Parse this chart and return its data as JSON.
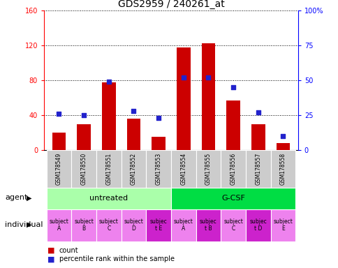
{
  "title": "GDS2959 / 240261_at",
  "samples": [
    "GSM178549",
    "GSM178550",
    "GSM178551",
    "GSM178552",
    "GSM178553",
    "GSM178554",
    "GSM178555",
    "GSM178556",
    "GSM178557",
    "GSM178558"
  ],
  "counts": [
    20,
    30,
    78,
    36,
    15,
    118,
    123,
    57,
    30,
    8
  ],
  "percentile_ranks": [
    26,
    25,
    49,
    28,
    23,
    52,
    52,
    45,
    27,
    10
  ],
  "ylim_left": [
    0,
    160
  ],
  "ylim_right": [
    0,
    100
  ],
  "yticks_left": [
    0,
    40,
    80,
    120,
    160
  ],
  "yticks_right": [
    0,
    25,
    50,
    75,
    100
  ],
  "ytick_labels_right": [
    "0",
    "25",
    "50",
    "75",
    "100%"
  ],
  "bar_color": "#cc0000",
  "dot_color": "#2222cc",
  "agent_groups": [
    {
      "label": "untreated",
      "start": 0,
      "end": 5,
      "color": "#aaffaa"
    },
    {
      "label": "G-CSF",
      "start": 5,
      "end": 10,
      "color": "#00dd44"
    }
  ],
  "individual_labels": [
    "subject\nA",
    "subject\nB",
    "subject\nC",
    "subject\nD",
    "subjec\nt E",
    "subject\nA",
    "subjec\nt B",
    "subject\nC",
    "subjec\nt D",
    "subject\nE"
  ],
  "individual_colors_light": "#ee82ee",
  "individual_colors_dark": "#cc22cc",
  "individual_dark_indices": [
    4,
    6,
    8
  ],
  "agent_label": "agent",
  "individual_label": "individual",
  "legend_count_label": "count",
  "legend_percentile_label": "percentile rank within the sample",
  "title_fontsize": 10,
  "tick_fontsize": 7,
  "sample_fontsize": 5.5,
  "ind_fontsize": 5.5,
  "agent_fontsize": 8
}
